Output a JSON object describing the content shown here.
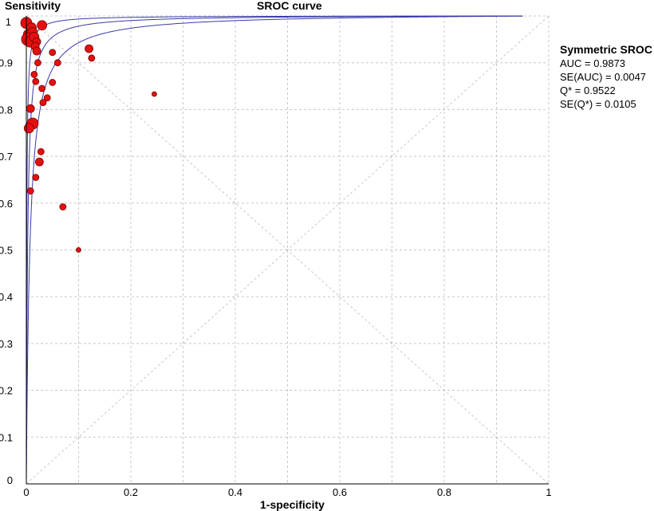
{
  "chart_data": {
    "type": "scatter",
    "title": "SROC curve",
    "xlabel": "1-specificity",
    "ylabel": "Sensitivity",
    "xlim": [
      0,
      1
    ],
    "ylim": [
      0,
      1
    ],
    "grid": true,
    "x_ticks": [
      0,
      0.2,
      0.4,
      0.6,
      0.8,
      1
    ],
    "x_tick_labels": [
      "0",
      "0.2",
      "0.4",
      "0.6",
      "0.8",
      "1"
    ],
    "y_ticks": [
      0,
      0.1,
      0.2,
      0.3,
      0.4,
      0.5,
      0.6,
      0.7,
      0.8,
      0.9,
      1
    ],
    "y_tick_labels": [
      "0",
      "0.1",
      "0.2",
      "0.3",
      "0.4",
      "0.5",
      "0.6",
      "0.7",
      "0.8",
      "0.9",
      "1"
    ],
    "points": [
      {
        "x": 0.0,
        "y": 0.985,
        "w": 7
      },
      {
        "x": 0.005,
        "y": 0.96,
        "w": 7
      },
      {
        "x": 0.01,
        "y": 0.975,
        "w": 6
      },
      {
        "x": 0.012,
        "y": 0.965,
        "w": 6
      },
      {
        "x": 0.003,
        "y": 0.95,
        "w": 8
      },
      {
        "x": 0.008,
        "y": 0.945,
        "w": 7
      },
      {
        "x": 0.015,
        "y": 0.955,
        "w": 6
      },
      {
        "x": 0.02,
        "y": 0.945,
        "w": 5
      },
      {
        "x": 0.017,
        "y": 0.935,
        "w": 5
      },
      {
        "x": 0.02,
        "y": 0.925,
        "w": 5
      },
      {
        "x": 0.03,
        "y": 0.98,
        "w": 6
      },
      {
        "x": 0.05,
        "y": 0.922,
        "w": 4
      },
      {
        "x": 0.12,
        "y": 0.93,
        "w": 5
      },
      {
        "x": 0.125,
        "y": 0.91,
        "w": 4
      },
      {
        "x": 0.022,
        "y": 0.9,
        "w": 4
      },
      {
        "x": 0.06,
        "y": 0.9,
        "w": 4
      },
      {
        "x": 0.015,
        "y": 0.875,
        "w": 4
      },
      {
        "x": 0.018,
        "y": 0.86,
        "w": 4
      },
      {
        "x": 0.05,
        "y": 0.858,
        "w": 4
      },
      {
        "x": 0.03,
        "y": 0.845,
        "w": 4
      },
      {
        "x": 0.04,
        "y": 0.825,
        "w": 4
      },
      {
        "x": 0.245,
        "y": 0.833,
        "w": 3
      },
      {
        "x": 0.032,
        "y": 0.815,
        "w": 4
      },
      {
        "x": 0.008,
        "y": 0.802,
        "w": 5
      },
      {
        "x": 0.012,
        "y": 0.77,
        "w": 7
      },
      {
        "x": 0.005,
        "y": 0.76,
        "w": 6
      },
      {
        "x": 0.028,
        "y": 0.71,
        "w": 4
      },
      {
        "x": 0.025,
        "y": 0.688,
        "w": 5
      },
      {
        "x": 0.018,
        "y": 0.655,
        "w": 4
      },
      {
        "x": 0.008,
        "y": 0.626,
        "w": 4
      },
      {
        "x": 0.07,
        "y": 0.592,
        "w": 4
      },
      {
        "x": 0.1,
        "y": 0.5,
        "w": 3
      }
    ],
    "curves": [
      {
        "name": "SROC",
        "D": 6.0
      },
      {
        "name": "SROC lower bound",
        "D": 5.0
      },
      {
        "name": "SROC upper bound",
        "D": 7.2
      }
    ]
  },
  "legend": {
    "title": "Symmetric SROC",
    "lines": [
      "AUC = 0.9873",
      "SE(AUC) = 0.0047",
      "Q* = 0.9522",
      "SE(Q*) = 0.0105"
    ]
  },
  "colors": {
    "point_fill": "#e31010",
    "point_stroke": "#7a0000",
    "curve": "#3a3aa8",
    "grid": "#c8c8c8",
    "axis": "#000000"
  }
}
